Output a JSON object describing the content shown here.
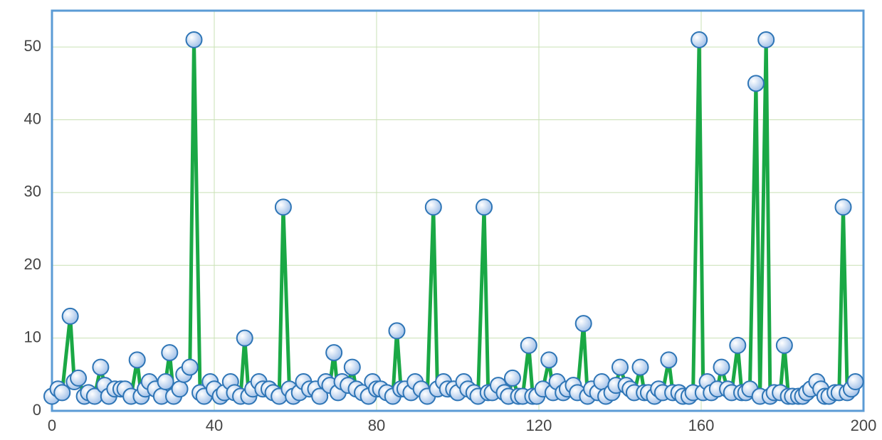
{
  "chart_data": {
    "type": "line",
    "x": [
      0,
      1.5,
      2.5,
      4.5,
      5.5,
      6.5,
      8,
      9,
      10.5,
      12,
      13,
      14,
      15.5,
      17,
      18,
      19.5,
      21,
      22,
      23,
      24,
      25.5,
      27,
      28,
      29,
      30,
      31.5,
      32.5,
      34,
      35,
      36.5,
      37.5,
      39,
      40,
      41.5,
      42.5,
      44,
      45,
      46.5,
      47.5,
      48.5,
      49.5,
      51,
      52,
      53.5,
      54.5,
      56,
      57,
      58.5,
      59.5,
      61,
      62,
      63.5,
      65,
      66,
      67.5,
      68.5,
      69.5,
      70.5,
      71.5,
      73,
      74,
      75,
      76.5,
      78,
      79,
      80,
      81,
      82.5,
      84,
      85,
      86,
      87,
      88.5,
      89.5,
      91,
      92.5,
      94,
      95,
      96.5,
      97.5,
      99,
      100,
      101.5,
      102.5,
      104,
      105,
      106.5,
      107.5,
      108.5,
      110,
      111.5,
      112.5,
      113.5,
      115,
      116,
      117.5,
      118.5,
      119.5,
      121,
      122.5,
      123.5,
      124.5,
      126,
      127,
      128.5,
      129.5,
      131,
      132,
      133,
      134.5,
      135.5,
      136.5,
      138,
      139,
      140,
      141.5,
      142.5,
      143.5,
      145,
      146,
      147,
      148.5,
      149.5,
      150.5,
      152,
      153,
      154.5,
      155.5,
      157,
      158,
      159.5,
      160.5,
      161.5,
      162.5,
      164,
      165,
      166.5,
      167.5,
      169,
      170,
      171,
      172,
      173.5,
      174.5,
      176,
      177,
      178,
      179.5,
      180.5,
      181.5,
      182.5,
      184,
      185,
      186,
      187,
      188.5,
      189.5,
      190.5,
      191.5,
      193,
      194,
      195,
      196,
      197,
      198
    ],
    "series": [
      {
        "color": "#1aa845",
        "marker_color": "#bcd3f0",
        "marker_edge": "#2e75b6",
        "values": [
          2,
          3,
          2.5,
          13,
          4,
          4.5,
          2,
          2.5,
          2,
          6,
          3.5,
          2,
          3,
          3,
          3,
          2,
          7,
          2,
          3,
          4,
          3,
          2,
          4,
          8,
          2,
          3,
          5,
          6,
          51,
          2.5,
          2,
          4,
          3,
          2,
          2.5,
          4,
          2.5,
          2,
          10,
          2,
          3,
          4,
          3,
          3,
          2.5,
          2,
          28,
          3,
          2,
          2.5,
          4,
          3,
          3,
          2,
          4,
          3.5,
          8,
          2.5,
          4,
          3.5,
          6,
          3,
          2.5,
          2,
          4,
          3,
          3,
          2.5,
          2,
          11,
          3,
          3,
          2.5,
          4,
          3,
          2,
          28,
          3,
          4,
          3,
          3,
          2.5,
          4,
          3,
          2.5,
          2,
          28,
          2.5,
          2.5,
          3.5,
          2.5,
          2,
          4.5,
          2,
          2,
          9,
          2,
          2,
          3,
          7,
          2.5,
          4,
          2.5,
          3,
          3.5,
          2.5,
          12,
          2,
          3,
          2.5,
          4,
          2,
          2.5,
          3.5,
          6,
          3.5,
          3,
          2.5,
          6,
          2.5,
          2.5,
          2,
          3,
          2.5,
          7,
          2.5,
          2.5,
          2,
          2,
          2.5,
          51,
          2.5,
          4,
          2.5,
          3,
          6,
          3,
          2.5,
          9,
          2.5,
          2.5,
          3,
          45,
          2,
          51,
          2,
          2.5,
          2.5,
          9,
          2,
          2,
          2,
          2,
          2.5,
          3,
          4,
          3,
          2,
          2,
          2.5,
          2.5,
          28,
          2.5,
          3,
          4
        ]
      }
    ],
    "xlim": [
      0,
      200
    ],
    "xticks": [
      0,
      40,
      80,
      120,
      160,
      200
    ],
    "ylim": [
      0,
      55
    ],
    "yticks": [
      0,
      10,
      20,
      30,
      40,
      50
    ],
    "grid": true
  }
}
